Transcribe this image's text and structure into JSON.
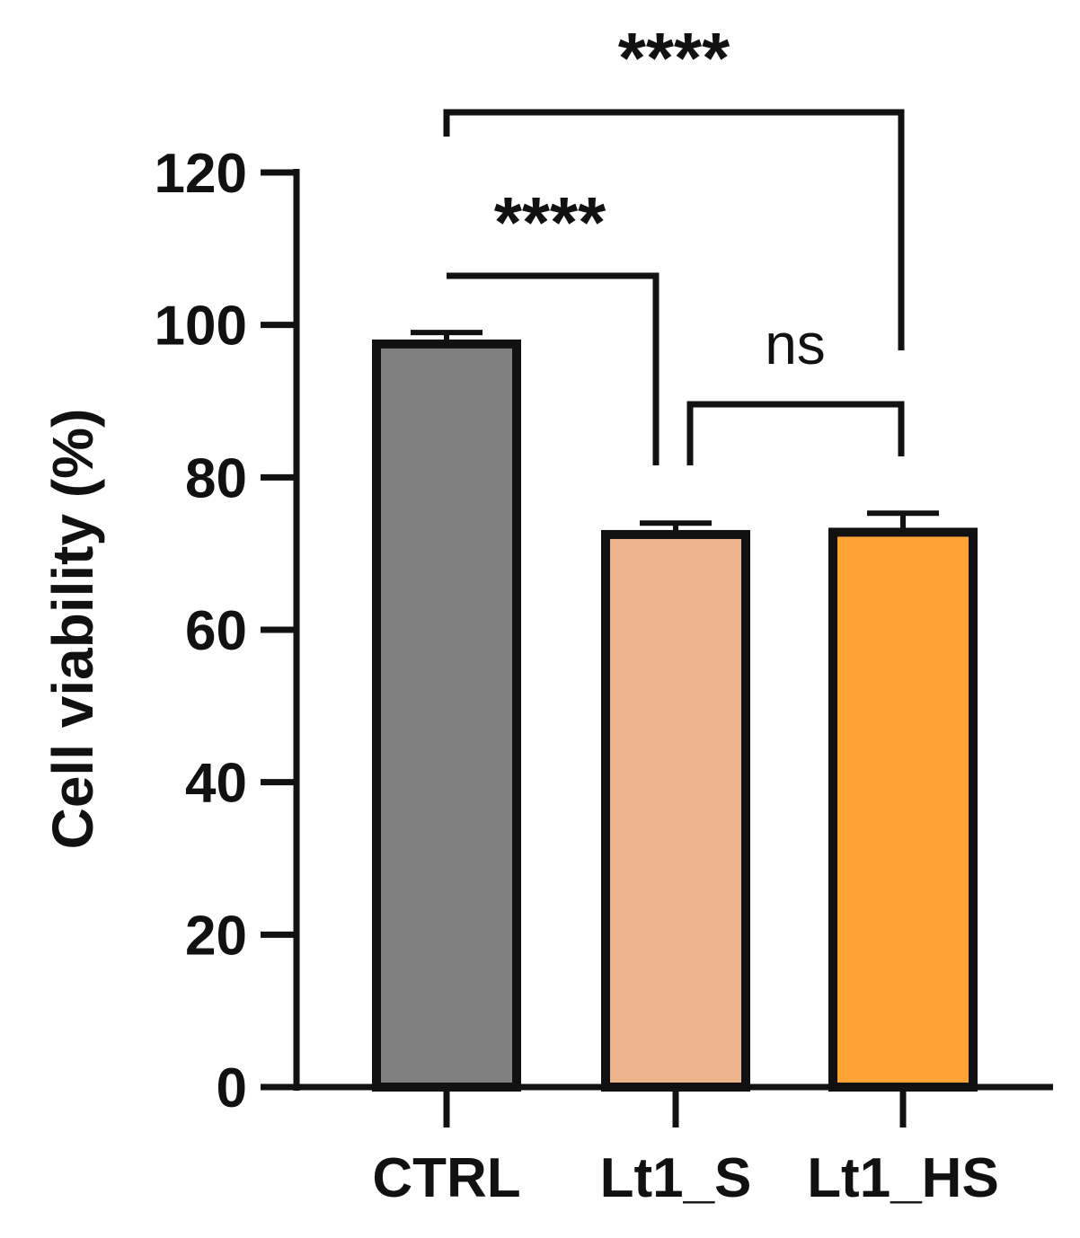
{
  "chart_data": {
    "type": "bar",
    "title": "",
    "xlabel": "",
    "ylabel": "Cell viability (%)",
    "ylim": [
      0,
      120
    ],
    "yticks": [
      0,
      20,
      40,
      60,
      80,
      100,
      120
    ],
    "categories": [
      "CTRL",
      "Lt1_S",
      "Lt1_HS"
    ],
    "values": [
      97.5,
      72.5,
      72.8
    ],
    "errors": [
      1.5,
      1.5,
      2.5
    ],
    "colors": [
      "#808080",
      "#EBB48A",
      "#FFA234"
    ],
    "grid": false,
    "legend": "none",
    "significance": [
      {
        "from": "CTRL",
        "to": "Lt1_HS",
        "label": "****"
      },
      {
        "from": "CTRL",
        "to": "Lt1_S",
        "label": "****"
      },
      {
        "from": "Lt1_S",
        "to": "Lt1_HS",
        "label": "ns"
      }
    ]
  }
}
